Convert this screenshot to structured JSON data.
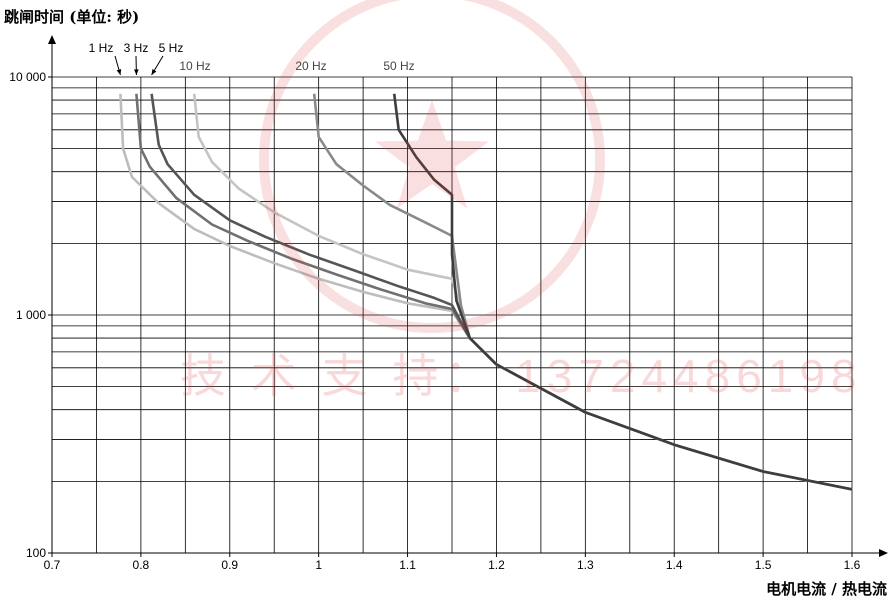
{
  "chart_data": {
    "type": "line",
    "title": "",
    "ylabel": "跳闸时间 (单位: 秒)",
    "xlabel": "电机电流 / 热电流",
    "xlim": [
      0.7,
      1.6
    ],
    "ylim": [
      100,
      10000
    ],
    "y_scale": "log",
    "x_ticks": [
      "0.7",
      "0.8",
      "0.9",
      "1",
      "1.1",
      "1.2",
      "1.3",
      "1.4",
      "1.5",
      "1.6"
    ],
    "y_ticks": [
      "100",
      "1 000",
      "10 000"
    ],
    "grid": true,
    "series": [
      {
        "name": "1 Hz",
        "color": "#bdbdbd",
        "points": [
          [
            0.777,
            8500
          ],
          [
            0.78,
            5000
          ],
          [
            0.79,
            3800
          ],
          [
            0.82,
            2950
          ],
          [
            0.86,
            2300
          ],
          [
            0.9,
            1950
          ],
          [
            0.95,
            1650
          ],
          [
            1.0,
            1420
          ],
          [
            1.05,
            1250
          ],
          [
            1.1,
            1120
          ],
          [
            1.15,
            1040
          ],
          [
            1.17,
            800
          ],
          [
            1.2,
            620
          ],
          [
            1.3,
            390
          ],
          [
            1.4,
            285
          ],
          [
            1.5,
            220
          ],
          [
            1.6,
            185
          ]
        ]
      },
      {
        "name": "3 Hz",
        "color": "#707070",
        "points": [
          [
            0.795,
            8500
          ],
          [
            0.8,
            5000
          ],
          [
            0.81,
            4200
          ],
          [
            0.84,
            3100
          ],
          [
            0.88,
            2400
          ],
          [
            0.92,
            2050
          ],
          [
            0.97,
            1720
          ],
          [
            1.02,
            1480
          ],
          [
            1.07,
            1280
          ],
          [
            1.12,
            1120
          ],
          [
            1.15,
            1060
          ],
          [
            1.17,
            800
          ],
          [
            1.2,
            620
          ],
          [
            1.3,
            390
          ],
          [
            1.4,
            285
          ],
          [
            1.5,
            220
          ],
          [
            1.6,
            185
          ]
        ]
      },
      {
        "name": "5 Hz",
        "color": "#555555",
        "points": [
          [
            0.812,
            8500
          ],
          [
            0.82,
            5200
          ],
          [
            0.83,
            4300
          ],
          [
            0.86,
            3200
          ],
          [
            0.9,
            2500
          ],
          [
            0.94,
            2130
          ],
          [
            0.99,
            1790
          ],
          [
            1.04,
            1540
          ],
          [
            1.09,
            1320
          ],
          [
            1.13,
            1180
          ],
          [
            1.15,
            1100
          ],
          [
            1.17,
            800
          ],
          [
            1.2,
            620
          ],
          [
            1.3,
            390
          ],
          [
            1.4,
            285
          ],
          [
            1.5,
            220
          ],
          [
            1.6,
            185
          ]
        ]
      },
      {
        "name": "10 Hz",
        "color": "#c4c4c4",
        "points": [
          [
            0.86,
            8500
          ],
          [
            0.865,
            5600
          ],
          [
            0.88,
            4400
          ],
          [
            0.91,
            3400
          ],
          [
            0.95,
            2700
          ],
          [
            1.0,
            2150
          ],
          [
            1.05,
            1800
          ],
          [
            1.1,
            1550
          ],
          [
            1.15,
            1420
          ],
          [
            1.17,
            800
          ],
          [
            1.2,
            620
          ],
          [
            1.3,
            390
          ],
          [
            1.4,
            285
          ],
          [
            1.5,
            220
          ],
          [
            1.6,
            185
          ]
        ]
      },
      {
        "name": "20 Hz",
        "color": "#8a8a8a",
        "points": [
          [
            0.995,
            8500
          ],
          [
            1.0,
            5600
          ],
          [
            1.02,
            4300
          ],
          [
            1.05,
            3500
          ],
          [
            1.08,
            2900
          ],
          [
            1.12,
            2450
          ],
          [
            1.15,
            2150
          ],
          [
            1.16,
            1100
          ],
          [
            1.17,
            800
          ],
          [
            1.2,
            620
          ],
          [
            1.3,
            390
          ],
          [
            1.4,
            285
          ],
          [
            1.5,
            220
          ],
          [
            1.6,
            185
          ]
        ]
      },
      {
        "name": "50 Hz",
        "color": "#3d3d3d",
        "points": [
          [
            1.085,
            8500
          ],
          [
            1.09,
            6000
          ],
          [
            1.11,
            4600
          ],
          [
            1.13,
            3700
          ],
          [
            1.15,
            3200
          ],
          [
            1.15,
            1800
          ],
          [
            1.155,
            1150
          ],
          [
            1.17,
            800
          ],
          [
            1.2,
            620
          ],
          [
            1.3,
            390
          ],
          [
            1.4,
            285
          ],
          [
            1.5,
            220
          ],
          [
            1.6,
            185
          ]
        ]
      }
    ],
    "series_labels": [
      "1 Hz",
      "3 Hz",
      "5 Hz",
      "10 Hz",
      "20 Hz",
      "50 Hz"
    ]
  },
  "watermark": {
    "text": "技 术 支 持： 13724486198",
    "color": "#dc3c3c"
  }
}
